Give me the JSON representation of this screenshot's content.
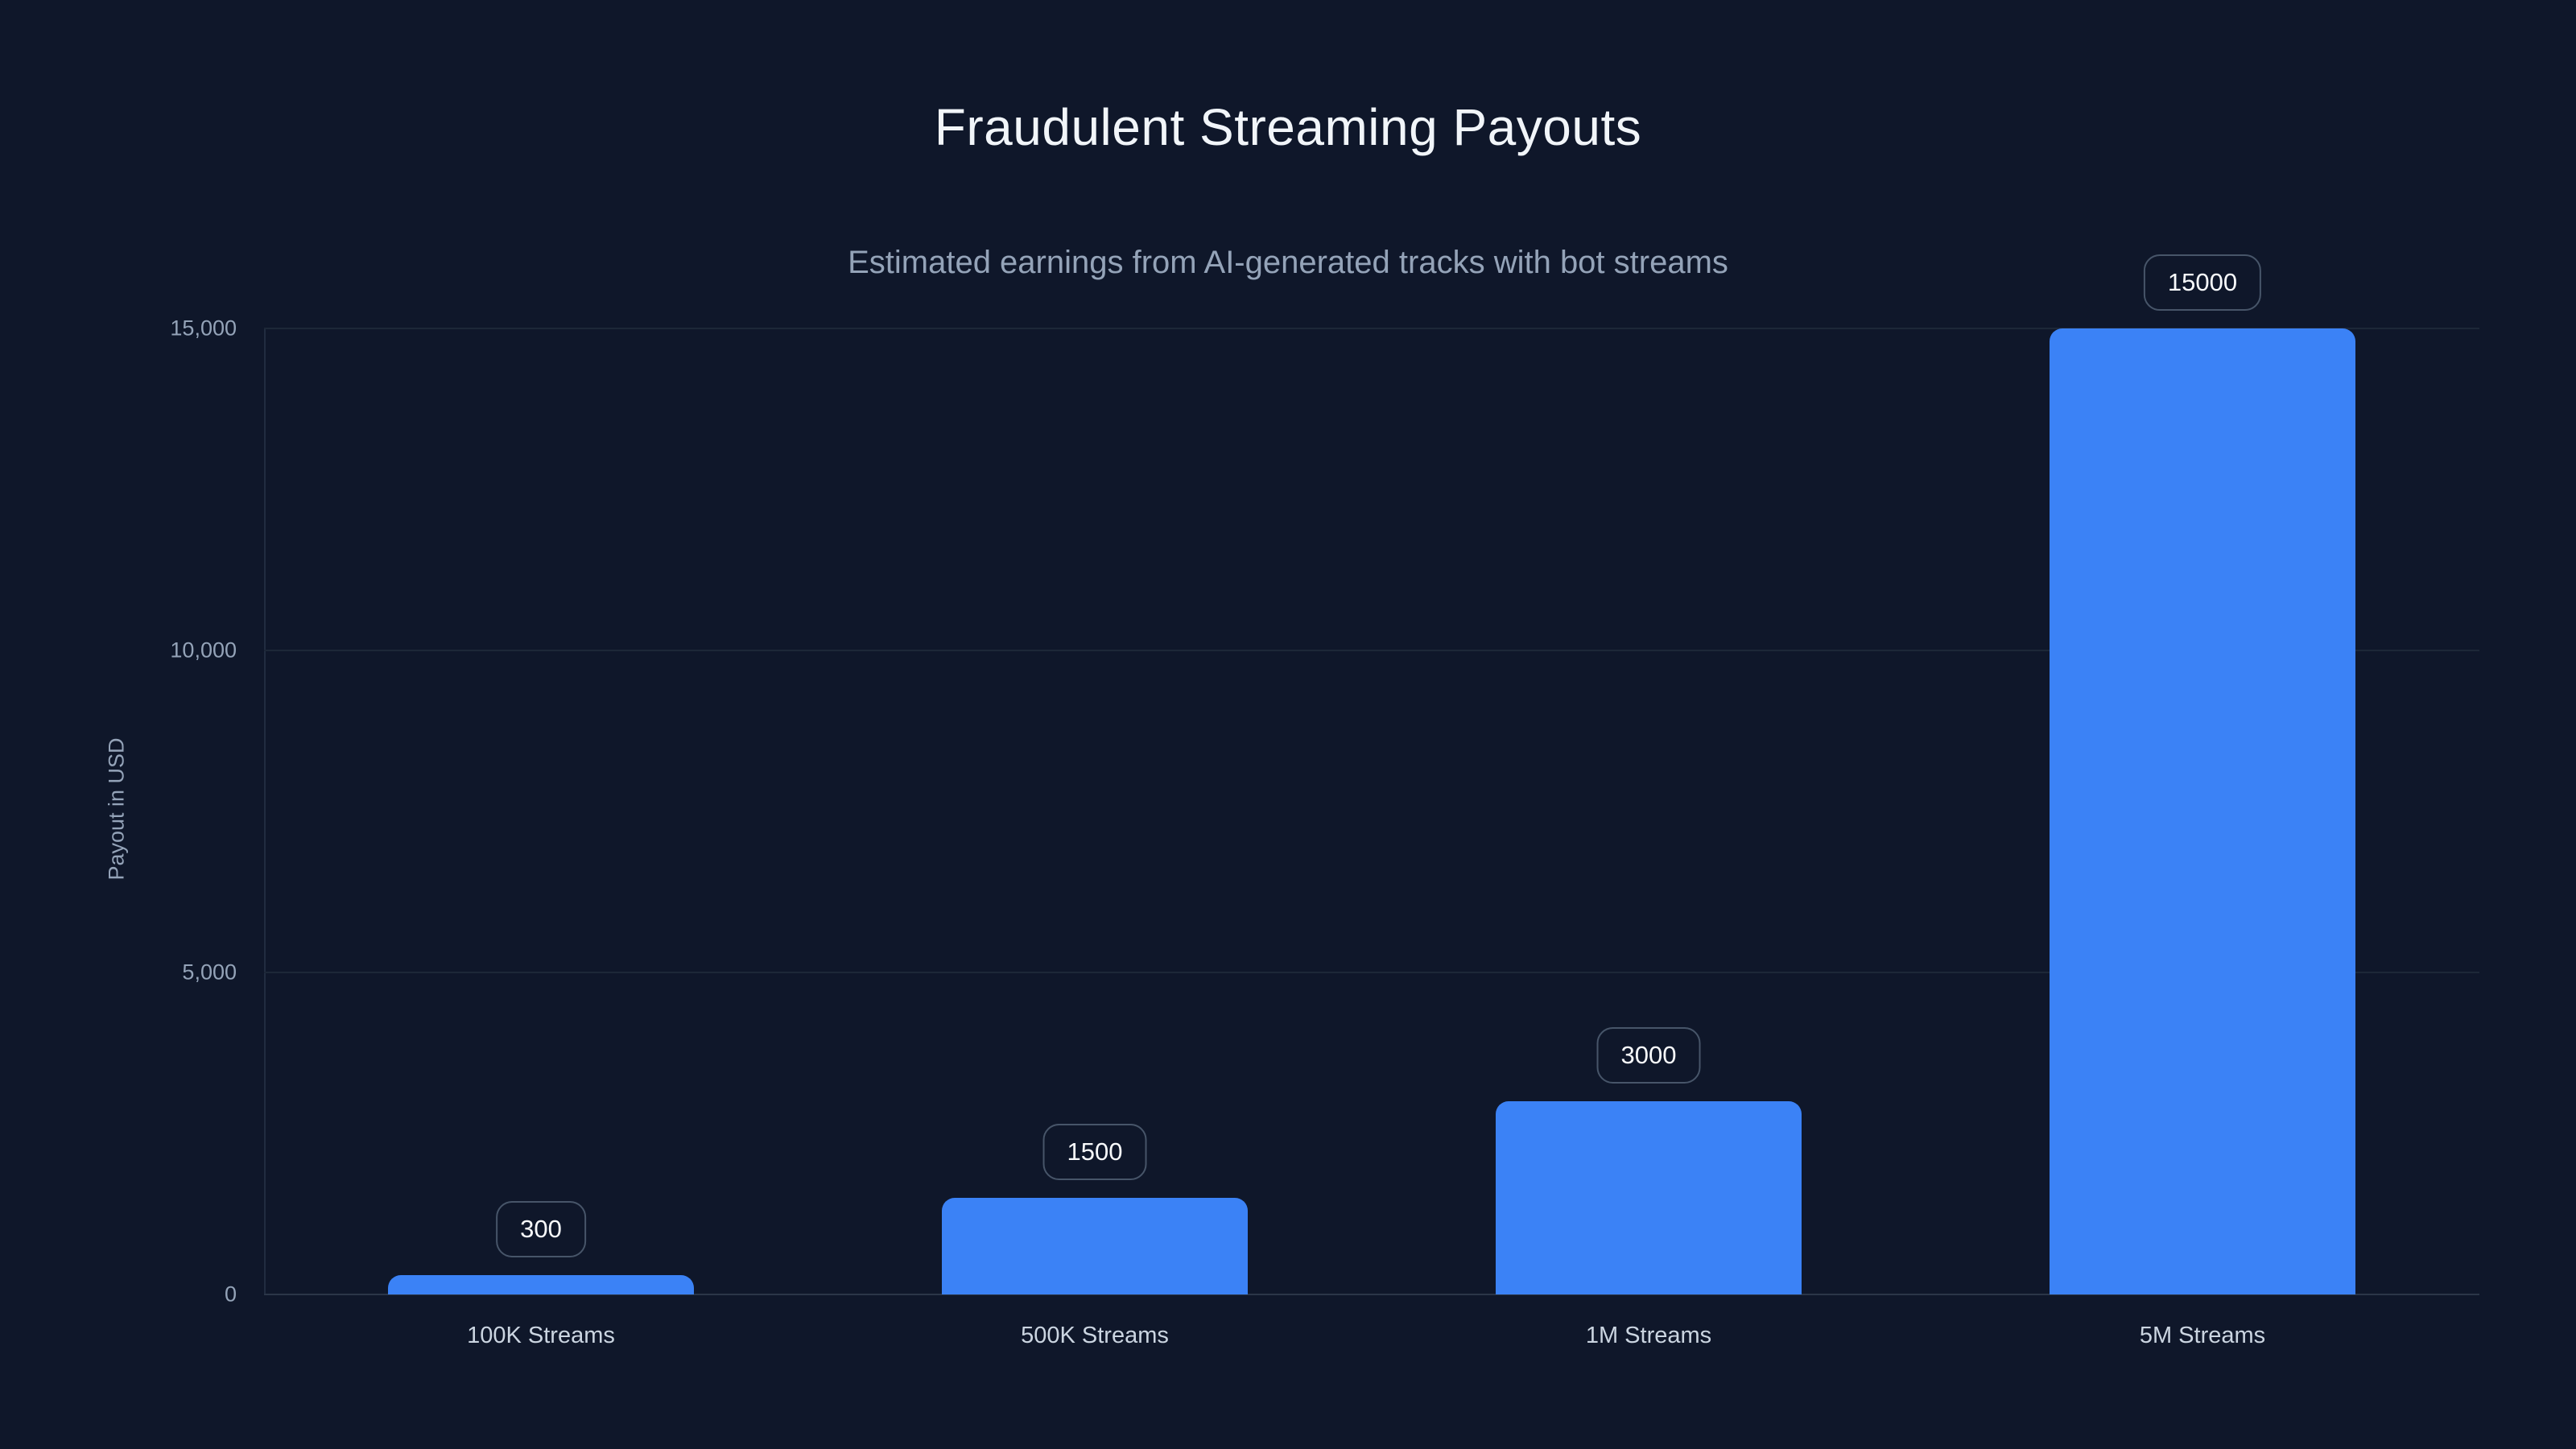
{
  "page": {
    "background_color": "#0f172a",
    "accent_color": "#3b82f6"
  },
  "chart_data": {
    "type": "bar",
    "title": "Fraudulent Streaming Payouts",
    "subtitle": "Estimated earnings from AI-generated tracks with bot streams",
    "categories": [
      "100K Streams",
      "500K Streams",
      "1M Streams",
      "5M Streams"
    ],
    "values": [
      300,
      1500,
      3000,
      15000
    ],
    "bar_value_labels": [
      "300",
      "1500",
      "3000",
      "15000"
    ],
    "xlabel": "",
    "ylabel": "Payout in USD",
    "ylim": [
      0,
      15000
    ],
    "yticks": [
      0,
      5000,
      10000,
      15000
    ],
    "ytick_labels": [
      "0",
      "5,000",
      "10,000",
      "15,000"
    ],
    "grid": true,
    "legend": false,
    "bar_color": "#3b82f6",
    "styles": {
      "title_color": "#f1f5f9",
      "subtitle_color": "#94a3b8",
      "tick_label_color": "#94a3b8",
      "category_label_color": "#cbd5e1",
      "badge_text_color": "#f8fafc",
      "badge_border_color": "#475569",
      "gridline_color": "#1d2738"
    }
  }
}
